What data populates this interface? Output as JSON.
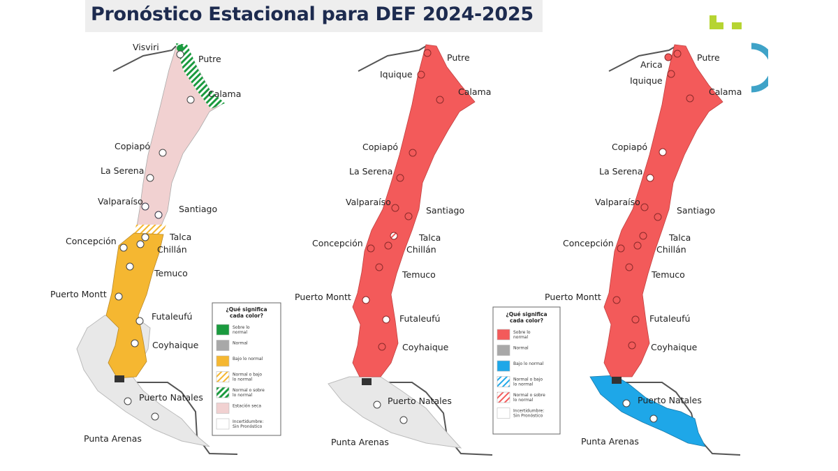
{
  "title": "Pronóstico Estacional para DEF 2024-2025",
  "colors": {
    "sobre": "#f35a5a",
    "normal": "#a8a8a8",
    "bajo": "#f5b731",
    "bajo_azul": "#1ea7e8",
    "verde": "#1a9a3e",
    "seca": "#f1d1d1",
    "patagonia": "#e8e8e8",
    "title_text": "#1d2b4f"
  },
  "legend1": {
    "title": "¿Qué significa cada color?",
    "items": [
      {
        "label": "Sobre lo normal",
        "swatch": "#1a9a3e"
      },
      {
        "label": "Normal",
        "swatch": "#a8a8a8"
      },
      {
        "label": "Bajo lo normal",
        "swatch": "#f5b731"
      },
      {
        "label": "Normal o bajo lo normal",
        "swatch": "hatch-yellow"
      },
      {
        "label": "Normal o sobre lo normal",
        "swatch": "hatch-green"
      },
      {
        "label": "Estación seca",
        "swatch": "#f1d1d1"
      },
      {
        "label": "Incertidumbre: Sin Pronóstico",
        "swatch": "#ffffff"
      }
    ]
  },
  "legend2": {
    "title": "¿Qué significa cada color?",
    "items": [
      {
        "label": "Sobre lo normal",
        "swatch": "#f35a5a"
      },
      {
        "label": "Normal",
        "swatch": "#a8a8a8"
      },
      {
        "label": "Bajo lo normal",
        "swatch": "#1ea7e8"
      },
      {
        "label": "Normal o bajo lo normal",
        "swatch": "hatch-blue"
      },
      {
        "label": "Normal o sobre lo normal",
        "swatch": "hatch-red"
      },
      {
        "label": "Incertidumbre: Sin Pronóstico",
        "swatch": "#ffffff"
      }
    ]
  },
  "map1": {
    "cities": {
      "visviri": "Visviri",
      "putre": "Putre",
      "calama": "Calama",
      "copiapo": "Copiapó",
      "laserena": "La Serena",
      "valparaiso": "Valparaíso",
      "santiago": "Santiago",
      "talca": "Talca",
      "concepcion": "Concepción",
      "chillan": "Chillán",
      "temuco": "Temuco",
      "puertomontt": "Puerto Montt",
      "futaleufu": "Futaleufú",
      "coyhaique": "Coyhaique",
      "puertonatales": "Puerto Natales",
      "puntaarenas": "Punta Arenas"
    }
  },
  "map2": {
    "cities": {
      "putre": "Putre",
      "iquique": "Iquique",
      "calama": "Calama",
      "copiapo": "Copiapó",
      "laserena": "La Serena",
      "valparaiso": "Valparaíso",
      "santiago": "Santiago",
      "talca": "Talca",
      "concepcion": "Concepción",
      "chillan": "Chillán",
      "temuco": "Temuco",
      "puertomontt": "Puerto Montt",
      "futaleufu": "Futaleufú",
      "coyhaique": "Coyhaique",
      "puertonatales": "Puerto Natales",
      "puntaarenas": "Punta Arenas"
    }
  },
  "map3": {
    "cities": {
      "arica": "Arica",
      "putre": "Putre",
      "iquique": "Iquique",
      "calama": "Calama",
      "copiapo": "Copiapó",
      "laserena": "La Serena",
      "valparaiso": "Valparaíso",
      "santiago": "Santiago",
      "talca": "Talca",
      "concepcion": "Concepción",
      "chillan": "Chillán",
      "temuco": "Temuco",
      "puertomontt": "Puerto Montt",
      "futaleufu": "Futaleufú",
      "coyhaique": "Coyhaique",
      "puertonatales": "Puerto Natales",
      "puntaarenas": "Punta Arenas"
    }
  }
}
